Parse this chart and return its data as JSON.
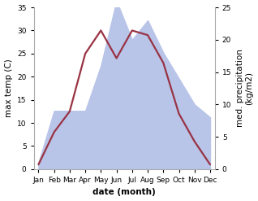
{
  "months": [
    "Jan",
    "Feb",
    "Mar",
    "Apr",
    "May",
    "Jun",
    "Jul",
    "Aug",
    "Sep",
    "Oct",
    "Nov",
    "Dec"
  ],
  "month_x": [
    0,
    1,
    2,
    3,
    4,
    5,
    6,
    7,
    8,
    9,
    10,
    11
  ],
  "temp": [
    1.0,
    8.0,
    12.5,
    25.0,
    30.0,
    24.0,
    30.0,
    29.0,
    23.0,
    12.0,
    6.0,
    1.0
  ],
  "precip_kg": [
    1.0,
    9.0,
    9.0,
    9.0,
    16.0,
    26.0,
    20.0,
    23.0,
    18.0,
    14.0,
    10.0,
    8.0
  ],
  "temp_color": "#993344",
  "precip_fill_color": "#b8c4e8",
  "left_ylim": [
    0,
    35
  ],
  "right_ylim": [
    0,
    25
  ],
  "left_yticks": [
    0,
    5,
    10,
    15,
    20,
    25,
    30,
    35
  ],
  "right_yticks": [
    0,
    5,
    10,
    15,
    20,
    25
  ],
  "xlabel": "date (month)",
  "ylabel_left": "max temp (C)",
  "ylabel_right": "med. precipitation\n(kg/m2)",
  "background_color": "#ffffff",
  "spine_color": "#aaaaaa",
  "label_fontsize": 7.5,
  "tick_fontsize": 6.5
}
